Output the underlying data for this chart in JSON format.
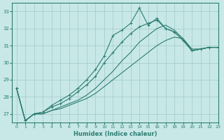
{
  "xlabel": "Humidex (Indice chaleur)",
  "bg_color": "#c8e8e8",
  "line_color": "#2d7d70",
  "grid_color": "#a0c8c8",
  "xlim": [
    -0.5,
    23
  ],
  "ylim": [
    26.5,
    33.5
  ],
  "yticks": [
    27,
    28,
    29,
    30,
    31,
    32,
    33
  ],
  "xticks": [
    0,
    1,
    2,
    3,
    4,
    5,
    6,
    7,
    8,
    9,
    10,
    11,
    12,
    13,
    14,
    15,
    16,
    17,
    18,
    19,
    20,
    21,
    22,
    23
  ],
  "series": [
    [
      28.5,
      26.6,
      27.0,
      27.0,
      27.2,
      27.3,
      27.5,
      27.7,
      27.9,
      28.2,
      28.6,
      29.0,
      29.4,
      29.8,
      30.2,
      30.6,
      31.0,
      31.3,
      31.5,
      31.4,
      30.7,
      30.8,
      30.9,
      30.9
    ],
    [
      28.5,
      26.6,
      27.0,
      27.0,
      27.2,
      27.4,
      27.6,
      27.8,
      28.1,
      28.5,
      29.0,
      29.5,
      30.1,
      30.6,
      31.2,
      31.6,
      32.0,
      32.2,
      31.9,
      31.4,
      30.8,
      30.8,
      30.9,
      30.9
    ],
    [
      28.5,
      26.6,
      27.0,
      27.1,
      27.4,
      27.6,
      27.9,
      28.3,
      28.7,
      29.2,
      30.0,
      30.6,
      31.2,
      31.7,
      32.1,
      32.3,
      32.5,
      32.0,
      31.8,
      31.3,
      30.7,
      30.8,
      30.9,
      30.9
    ],
    [
      28.5,
      26.6,
      27.0,
      27.1,
      27.5,
      27.8,
      28.1,
      28.5,
      29.0,
      29.6,
      30.4,
      31.6,
      31.9,
      32.3,
      33.2,
      32.2,
      32.6,
      32.0,
      31.8,
      31.3,
      30.7,
      30.8,
      30.9,
      30.9
    ]
  ]
}
